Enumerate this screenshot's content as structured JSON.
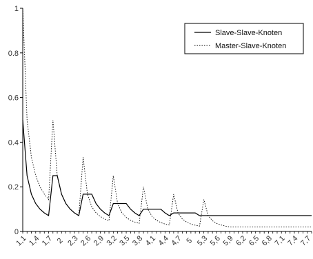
{
  "chart_data": {
    "type": "line",
    "title": "",
    "xlabel": "",
    "ylabel": "",
    "x": [
      1.1,
      1.2,
      1.3,
      1.4,
      1.5,
      1.6,
      1.7,
      1.8,
      1.9,
      2.0,
      2.1,
      2.2,
      2.3,
      2.4,
      2.5,
      2.6,
      2.7,
      2.8,
      2.9,
      3.0,
      3.1,
      3.2,
      3.3,
      3.4,
      3.5,
      3.6,
      3.7,
      3.8,
      3.9,
      4.0,
      4.1,
      4.2,
      4.3,
      4.4,
      4.5,
      4.6,
      4.7,
      4.8,
      4.9,
      5.0,
      5.1,
      5.2,
      5.3,
      5.4,
      5.5,
      5.6,
      5.7,
      5.8,
      5.9,
      6.0,
      6.1,
      6.2,
      6.3,
      6.4,
      6.5,
      6.6,
      6.7,
      6.8,
      6.9,
      7.0,
      7.1,
      7.2,
      7.3,
      7.4,
      7.5,
      7.6,
      7.7,
      7.8
    ],
    "x_tick_labels": [
      "1,1",
      "1,4",
      "1,7",
      "2",
      "2,3",
      "2,6",
      "2,9",
      "3,2",
      "3,5",
      "3,8",
      "4,1",
      "4,4",
      "4,7",
      "5",
      "5,3",
      "5,6",
      "5,9",
      "6,2",
      "6,5",
      "6,8",
      "7,1",
      "7,4",
      "7,7"
    ],
    "y_ticks": [
      "0",
      "0.2",
      "0.4",
      "0.6",
      "0.8",
      "1"
    ],
    "ylim": [
      0,
      1
    ],
    "legend": {
      "position": "top-right"
    },
    "series": [
      {
        "name": "Slave-Slave-Knoten",
        "line_style": "solid",
        "color": "#000000",
        "values": [
          0.5,
          0.25,
          0.167,
          0.125,
          0.1,
          0.083,
          0.071,
          0.25,
          0.25,
          0.167,
          0.125,
          0.1,
          0.083,
          0.071,
          0.167,
          0.167,
          0.167,
          0.125,
          0.1,
          0.083,
          0.071,
          0.125,
          0.125,
          0.125,
          0.125,
          0.1,
          0.083,
          0.071,
          0.1,
          0.1,
          0.1,
          0.1,
          0.1,
          0.083,
          0.071,
          0.083,
          0.083,
          0.083,
          0.083,
          0.083,
          0.083,
          0.071,
          0.071,
          0.071,
          0.071,
          0.071,
          0.071,
          0.071,
          0.071,
          0.071,
          0.071,
          0.071,
          0.071,
          0.071,
          0.071,
          0.071,
          0.071,
          0.071,
          0.071,
          0.071,
          0.071,
          0.071,
          0.071,
          0.071,
          0.071,
          0.071,
          0.071,
          0.071
        ]
      },
      {
        "name": "Master-Slave-Knoten",
        "line_style": "dotted",
        "color": "#000000",
        "values": [
          1.0,
          0.5,
          0.333,
          0.25,
          0.2,
          0.167,
          0.143,
          0.5,
          0.25,
          0.167,
          0.125,
          0.1,
          0.083,
          0.071,
          0.333,
          0.167,
          0.111,
          0.083,
          0.067,
          0.056,
          0.048,
          0.25,
          0.125,
          0.083,
          0.063,
          0.05,
          0.042,
          0.036,
          0.2,
          0.1,
          0.067,
          0.05,
          0.04,
          0.033,
          0.029,
          0.167,
          0.083,
          0.056,
          0.042,
          0.033,
          0.028,
          0.024,
          0.143,
          0.071,
          0.048,
          0.036,
          0.029,
          0.024,
          0.02,
          0.02,
          0.02,
          0.02,
          0.02,
          0.02,
          0.02,
          0.02,
          0.02,
          0.02,
          0.02,
          0.02,
          0.02,
          0.02,
          0.02,
          0.02,
          0.02,
          0.02,
          0.02,
          0.02
        ]
      }
    ]
  }
}
